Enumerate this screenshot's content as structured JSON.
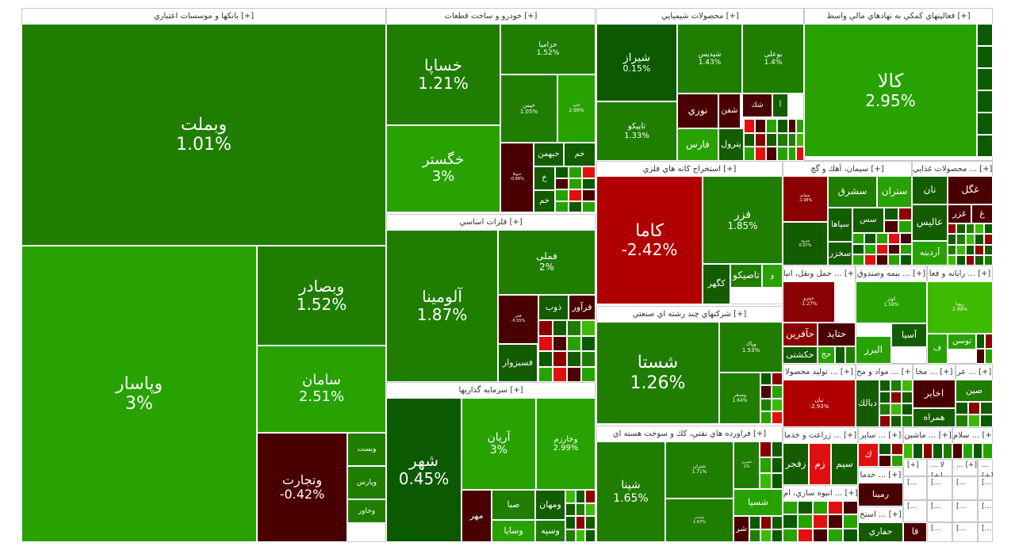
{
  "palette": {
    "dark_red": "#4a0000",
    "mid_red": "#8b0000",
    "red": "#b30000",
    "bright_red": "#e01010",
    "dark_green": "#0b5a00",
    "mid_green": "#1a7a00",
    "green": "#2f8f00",
    "light_green": "#24a600",
    "bright_green": "#3dba00",
    "lime": "#5ccf1a"
  },
  "sectors": [
    {
      "title": "بانکها و موسسات اعتباري [+]",
      "tiles": [
        {
          "name": "وبملت",
          "pct": "1.01%",
          "color": "#1f7d00"
        },
        {
          "name": "وپاسار",
          "pct": "3%",
          "color": "#27a200"
        },
        {
          "name": "وبصادر",
          "pct": "1.52%",
          "color": "#1f7d00"
        },
        {
          "name": "سامان",
          "pct": "2.51%",
          "color": "#27a200"
        },
        {
          "name": "وتجارت",
          "pct": "-0.42%",
          "color": "#4a0000"
        },
        {
          "name": "وبست",
          "pct": "",
          "color": "#1f7d00"
        },
        {
          "name": "وپارس",
          "pct": "",
          "color": "#1f7d00"
        },
        {
          "name": "وخاور",
          "pct": "",
          "color": "#1f7d00"
        }
      ]
    },
    {
      "title": "خودرو و ساخت قطعات [+]",
      "tiles": [
        {
          "name": "خساپا",
          "pct": "1.21%",
          "color": "#1f7d00"
        },
        {
          "name": "خگستر",
          "pct": "3%",
          "color": "#27a200"
        },
        {
          "name": "خزامیا",
          "pct": "1.52%",
          "color": "#1f7d00"
        },
        {
          "name": "خپمن",
          "pct": "1.05%",
          "color": "#1f7d00"
        },
        {
          "name": "خپ",
          "pct": "2.99%",
          "color": "#27a200"
        },
        {
          "name": "خبهمن",
          "pct": "",
          "color": "#145c00"
        },
        {
          "name": "خم",
          "pct": "",
          "color": "#145c00"
        },
        {
          "name": "خ",
          "pct": "",
          "color": "#145c00"
        },
        {
          "name": "خم",
          "pct": "",
          "color": "#145c00"
        },
        {
          "name": "ختوقا",
          "pct": "-0.89%",
          "color": "#4a0000"
        }
      ]
    },
    {
      "title": "محصولات شيميايي [+]",
      "tiles": [
        {
          "name": "شیراز",
          "pct": "0.15%",
          "color": "#0b5a00"
        },
        {
          "name": "تاپیکو",
          "pct": "1.33%",
          "color": "#1f7d00"
        },
        {
          "name": "شپدیس",
          "pct": "1.43%",
          "color": "#1f7d00"
        },
        {
          "name": "بوعلی",
          "pct": "1.4%",
          "color": "#1f7d00"
        },
        {
          "name": "نوري",
          "pct": "",
          "color": "#4a0000"
        },
        {
          "name": "شفن",
          "pct": "",
          "color": "#4a0000"
        },
        {
          "name": "شك",
          "pct": "",
          "color": "#4a0000"
        },
        {
          "name": "آ",
          "pct": "",
          "color": "#145c00"
        },
        {
          "name": "فارس",
          "pct": "",
          "color": "#27a200"
        },
        {
          "name": "پترول",
          "pct": "",
          "color": "#145c00"
        }
      ]
    },
    {
      "title": "فعاليتهاي كمكي به نهادهاي مالي واسط [+]",
      "tiles": [
        {
          "name": "کالا",
          "pct": "2.95%",
          "color": "#27a200"
        }
      ]
    },
    {
      "title": "استخراج كانه هاي فلزي [+]",
      "tiles": [
        {
          "name": "کاما",
          "pct": "-2.42%",
          "color": "#b00000"
        },
        {
          "name": "فزر",
          "pct": "1.85%",
          "color": "#1f7d00"
        },
        {
          "name": "کگهر",
          "pct": "",
          "color": "#145c00"
        },
        {
          "name": "تاصیکو",
          "pct": "",
          "color": "#1f7d00"
        },
        {
          "name": "و",
          "pct": "",
          "color": "#27a200"
        }
      ]
    },
    {
      "title": "سيمان، آهك و گچ [+]",
      "tiles": [
        {
          "name": "سفانو",
          "pct": "-1.98%",
          "color": "#8b0000"
        },
        {
          "name": "سرود",
          "pct": "0.07%",
          "color": "#145c00"
        },
        {
          "name": "سشرق",
          "pct": "",
          "color": "#1f7d00"
        },
        {
          "name": "ستران",
          "pct": "",
          "color": "#27a200"
        },
        {
          "name": "سس",
          "pct": "",
          "color": "#145c00"
        },
        {
          "name": "سپاها",
          "pct": "",
          "color": "#145c00"
        },
        {
          "name": "سخزر",
          "pct": "",
          "color": "#145c00"
        }
      ]
    },
    {
      "title": "محصولات غذايي ... [+]",
      "tiles": [
        {
          "name": "نان",
          "pct": "",
          "color": "#145c00"
        },
        {
          "name": "غگل",
          "pct": "",
          "color": "#4a0000"
        },
        {
          "name": "غزر",
          "pct": "",
          "color": "#4a0000"
        },
        {
          "name": "غ",
          "pct": "",
          "color": "#4a0000"
        },
        {
          "name": "عالیس",
          "pct": "",
          "color": "#145c00"
        },
        {
          "name": "آردینه",
          "pct": "",
          "color": "#27a200"
        }
      ]
    },
    {
      "title": "فلزات اساسي [+]",
      "tiles": [
        {
          "name": "آلومینا",
          "pct": "1.87%",
          "color": "#1f7d00"
        },
        {
          "name": "فملی",
          "pct": "2%",
          "color": "#1f7d00"
        },
        {
          "name": "ذوب",
          "pct": "",
          "color": "#145c00"
        },
        {
          "name": "فرآور",
          "pct": "",
          "color": "#4a0000"
        },
        {
          "name": "فسبزوار",
          "pct": "",
          "color": "#145c00"
        },
        {
          "name": "فجر",
          "pct": "-0.55%",
          "color": "#4a0000"
        }
      ]
    },
    {
      "title": "شركتهاي چند رشته اي صنعتي [+]",
      "tiles": [
        {
          "name": "شستا",
          "pct": "1.26%",
          "color": "#1f7d00"
        },
        {
          "name": "وپاك",
          "pct": "1.53%",
          "color": "#1f7d00"
        },
        {
          "name": "وصنعر",
          "pct": "1.64%",
          "color": "#1f7d00"
        }
      ]
    },
    {
      "title": "حمل ونقل، انبا ... [+]",
      "tiles": [
        {
          "name": "حپترو",
          "pct": "-1.27%",
          "color": "#8b0000"
        },
        {
          "name": "حتاید",
          "pct": "",
          "color": "#4a0000"
        },
        {
          "name": "حآفرین",
          "pct": "",
          "color": "#8b0000"
        },
        {
          "name": "حکشتی",
          "pct": "",
          "color": "#145c00"
        },
        {
          "name": "حج",
          "pct": "",
          "color": "#27a200"
        }
      ]
    },
    {
      "title": "بيمه وصندوق ... [+]",
      "tiles": [
        {
          "name": "کوثر",
          "pct": "1.59%",
          "color": "#27a200"
        },
        {
          "name": "آسیا",
          "pct": "",
          "color": "#145c00"
        },
        {
          "name": "البرز",
          "pct": "",
          "color": "#27a200"
        }
      ]
    },
    {
      "title": "رايانه و فعا ... [+]",
      "tiles": [
        {
          "name": "رپویا",
          "pct": "2.99%",
          "color": "#3dba00"
        },
        {
          "name": "توسن",
          "pct": "",
          "color": "#27a200"
        },
        {
          "name": "ف",
          "pct": "",
          "color": "#27a200"
        }
      ]
    },
    {
      "title": "سرمايه گذاريها [+]",
      "tiles": [
        {
          "name": "شهر",
          "pct": "0.45%",
          "color": "#0b5a00"
        },
        {
          "name": "آریان",
          "pct": "3%",
          "color": "#27a200"
        },
        {
          "name": "وخارزم",
          "pct": "2.99%",
          "color": "#27a200"
        },
        {
          "name": "مهر",
          "pct": "",
          "color": "#4a0000"
        },
        {
          "name": "صبا",
          "pct": "",
          "color": "#1f7d00"
        },
        {
          "name": "ومهان",
          "pct": "",
          "color": "#145c00"
        },
        {
          "name": "وسایا",
          "pct": "",
          "color": "#27a200"
        },
        {
          "name": "وسپه",
          "pct": "",
          "color": "#1f7d00"
        }
      ]
    },
    {
      "title": "فراورده هاي نفتي، كك و سوخت هسته اي [+]",
      "tiles": [
        {
          "name": "شپنا",
          "pct": "1.65%",
          "color": "#1f7d00"
        },
        {
          "name": "شتران",
          "pct": "1.71%",
          "color": "#1f7d00"
        },
        {
          "name": "شبندر",
          "pct": "1.67%",
          "color": "#1f7d00"
        },
        {
          "name": "شبریز",
          "pct": "1%",
          "color": "#1f7d00"
        },
        {
          "name": "شسپا",
          "pct": "",
          "color": "#27a200"
        },
        {
          "name": "شر",
          "pct": "",
          "color": "#4a0000"
        }
      ]
    },
    {
      "title": "توليد محصولا ... [+]",
      "tiles": [
        {
          "name": "تیان",
          "pct": "-2.93%",
          "color": "#b00000"
        }
      ]
    },
    {
      "title": "مواد و مح ... [+]",
      "tiles": [
        {
          "name": "دبالك",
          "pct": "",
          "color": "#145c00"
        }
      ]
    },
    {
      "title": "مخا ... [+]",
      "tiles": [
        {
          "name": "اخابر",
          "pct": "",
          "color": "#4a0000"
        },
        {
          "name": "همراه",
          "pct": "",
          "color": "#145c00"
        }
      ]
    },
    {
      "title": "عر ... [+]",
      "tiles": [
        {
          "name": "صین",
          "pct": "",
          "color": "#1f7d00"
        }
      ]
    },
    {
      "title": "زراعت و خدما ... [+]",
      "tiles": [
        {
          "name": "زفجر",
          "pct": "",
          "color": "#145c00"
        },
        {
          "name": "زم",
          "pct": "",
          "color": "#e01010"
        },
        {
          "name": "سیم",
          "pct": "",
          "color": "#145c00"
        }
      ]
    },
    {
      "title": "ساير ... [+]",
      "tiles": [
        {
          "name": "ك",
          "pct": "",
          "color": "#e01010"
        }
      ]
    },
    {
      "title": "ماشين ... [+]",
      "tiles": []
    },
    {
      "title": "سلام ... [+]",
      "tiles": []
    },
    {
      "title": "خدما ... [+]",
      "tiles": [
        {
          "name": "رمینا",
          "pct": "",
          "color": "#4a0000"
        }
      ]
    },
    {
      "title": "انبوه سازي، ام ... [+]",
      "tiles": []
    },
    {
      "title": "استخ ... [+]",
      "tiles": [
        {
          "name": "حفاري",
          "pct": "",
          "color": "#145c00"
        }
      ]
    },
    {
      "title": "قا [+]",
      "tiles": [
        {
          "name": "قا",
          "pct": "",
          "color": "#4a0000"
        }
      ]
    }
  ],
  "mini_labels": [
    "[+]",
    "... لا [+]",
    "... [+]",
    "... [+]",
    "[...",
    "[...",
    "[...",
    "[...",
    "[...",
    "[...",
    "[...",
    "[...",
    "[...",
    "[...",
    "[..."
  ],
  "chart_data": {
    "type": "treemap",
    "title": "",
    "metric": "daily % change",
    "series": [
      {
        "sector": "بانکها و موسسات اعتباري",
        "items": [
          [
            "وبملت",
            1.01
          ],
          [
            "وپاسار",
            3
          ],
          [
            "وبصادر",
            1.52
          ],
          [
            "سامان",
            2.51
          ],
          [
            "وتجارت",
            -0.42
          ]
        ]
      },
      {
        "sector": "خودرو و ساخت قطعات",
        "items": [
          [
            "خساپا",
            1.21
          ],
          [
            "خگستر",
            3
          ],
          [
            "خزامیا",
            1.52
          ],
          [
            "خپمن",
            1.05
          ]
        ]
      },
      {
        "sector": "محصولات شيميايي",
        "items": [
          [
            "شیراز",
            0.15
          ],
          [
            "تاپیکو",
            1.33
          ],
          [
            "شپدیس",
            1.43
          ],
          [
            "بوعلی",
            1.4
          ]
        ]
      },
      {
        "sector": "فعاليتهاي كمكي به نهادهاي مالي واسط",
        "items": [
          [
            "کالا",
            2.95
          ]
        ]
      },
      {
        "sector": "استخراج كانه هاي فلزي",
        "items": [
          [
            "کاما",
            -2.42
          ],
          [
            "فزر",
            1.85
          ]
        ]
      },
      {
        "sector": "فلزات اساسي",
        "items": [
          [
            "آلومینا",
            1.87
          ],
          [
            "فملی",
            2
          ]
        ]
      },
      {
        "sector": "شركتهاي چند رشته اي صنعتي",
        "items": [
          [
            "شستا",
            1.26
          ],
          [
            "وپاك",
            1.53
          ],
          [
            "وصنعر",
            1.64
          ]
        ]
      },
      {
        "sector": "سرمايه گذاريها",
        "items": [
          [
            "شهر",
            0.45
          ],
          [
            "آریان",
            3
          ],
          [
            "وخارزم",
            2.99
          ]
        ]
      },
      {
        "sector": "فراورده هاي نفتي، كك و سوخت هسته اي",
        "items": [
          [
            "شپنا",
            1.65
          ],
          [
            "شتران",
            1.71
          ],
          [
            "شبندر",
            1.67
          ]
        ]
      },
      {
        "sector": "سيمان، آهك و گچ",
        "items": [
          [
            "سفانو",
            -1.98
          ],
          [
            "سرود",
            0.07
          ]
        ]
      },
      {
        "sector": "حمل ونقل، انبارداري",
        "items": [
          [
            "حپترو",
            -1.27
          ]
        ]
      },
      {
        "sector": "بيمه وصندوق",
        "items": [
          [
            "کوثر",
            1.59
          ]
        ]
      },
      {
        "sector": "رايانه و فعاليتهاي وابسته",
        "items": [
          [
            "رپویا",
            2.99
          ]
        ]
      },
      {
        "sector": "توليد محصولات",
        "items": [
          [
            "تیان",
            -2.93
          ]
        ]
      }
    ]
  }
}
